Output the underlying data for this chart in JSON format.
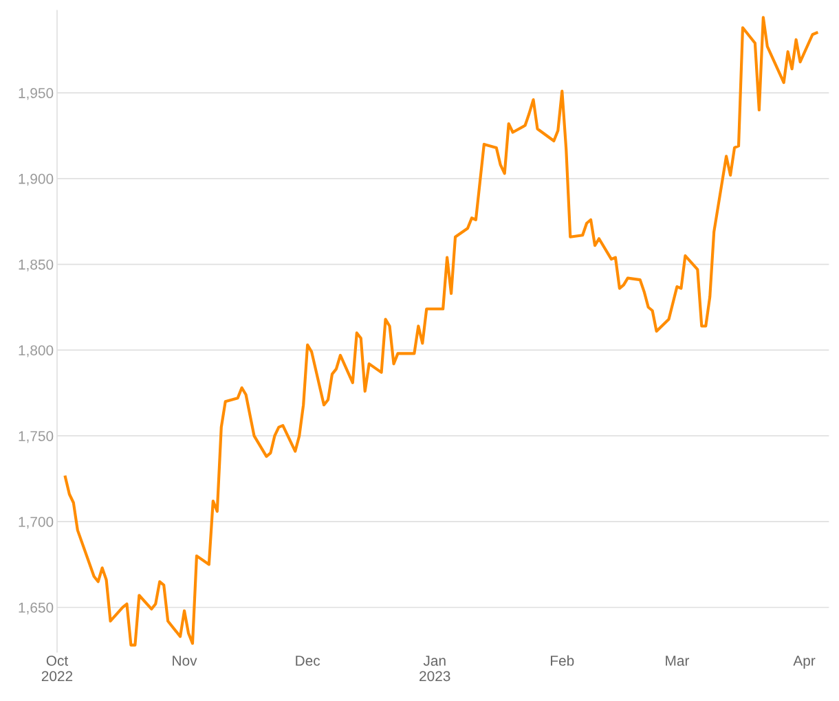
{
  "chart_data": {
    "type": "line",
    "grid": "y",
    "xlim": [
      "2022-10-01",
      "2023-04-07"
    ],
    "ylim": [
      1624,
      1998
    ],
    "xticks": [
      {
        "value": "2022-10-01",
        "label": "Oct\n2022"
      },
      {
        "value": "2022-11-01",
        "label": "Nov"
      },
      {
        "value": "2022-12-01",
        "label": "Dec"
      },
      {
        "value": "2023-01-01",
        "label": "Jan\n2023"
      },
      {
        "value": "2023-02-01",
        "label": "Feb"
      },
      {
        "value": "2023-03-01",
        "label": "Mar"
      },
      {
        "value": "2023-04-01",
        "label": "Apr"
      }
    ],
    "yticks": [
      {
        "value": 1650,
        "label": "1,650"
      },
      {
        "value": 1700,
        "label": "1,700"
      },
      {
        "value": 1750,
        "label": "1,750"
      },
      {
        "value": 1800,
        "label": "1,800"
      },
      {
        "value": 1850,
        "label": "1,850"
      },
      {
        "value": 1900,
        "label": "1,900"
      },
      {
        "value": 1950,
        "label": "1,950"
      }
    ],
    "marker": "none",
    "line_style": "solid",
    "series": [
      {
        "color": "#ff8c00",
        "x": [
          "2022-10-03",
          "2022-10-04",
          "2022-10-05",
          "2022-10-06",
          "2022-10-10",
          "2022-10-11",
          "2022-10-12",
          "2022-10-13",
          "2022-10-14",
          "2022-10-17",
          "2022-10-18",
          "2022-10-19",
          "2022-10-20",
          "2022-10-21",
          "2022-10-24",
          "2022-10-25",
          "2022-10-26",
          "2022-10-27",
          "2022-10-28",
          "2022-10-31",
          "2022-11-01",
          "2022-11-02",
          "2022-11-03",
          "2022-11-04",
          "2022-11-07",
          "2022-11-08",
          "2022-11-09",
          "2022-11-10",
          "2022-11-11",
          "2022-11-14",
          "2022-11-15",
          "2022-11-16",
          "2022-11-17",
          "2022-11-18",
          "2022-11-21",
          "2022-11-22",
          "2022-11-23",
          "2022-11-24",
          "2022-11-25",
          "2022-11-28",
          "2022-11-29",
          "2022-11-30",
          "2022-12-01",
          "2022-12-02",
          "2022-12-05",
          "2022-12-06",
          "2022-12-07",
          "2022-12-08",
          "2022-12-09",
          "2022-12-12",
          "2022-12-13",
          "2022-12-14",
          "2022-12-15",
          "2022-12-16",
          "2022-12-19",
          "2022-12-20",
          "2022-12-21",
          "2022-12-22",
          "2022-12-23",
          "2022-12-27",
          "2022-12-28",
          "2022-12-29",
          "2022-12-30",
          "2023-01-03",
          "2023-01-04",
          "2023-01-05",
          "2023-01-06",
          "2023-01-09",
          "2023-01-10",
          "2023-01-11",
          "2023-01-12",
          "2023-01-13",
          "2023-01-16",
          "2023-01-17",
          "2023-01-18",
          "2023-01-19",
          "2023-01-20",
          "2023-01-23",
          "2023-01-24",
          "2023-01-25",
          "2023-01-26",
          "2023-01-30",
          "2023-01-31",
          "2023-02-01",
          "2023-02-02",
          "2023-02-03",
          "2023-02-06",
          "2023-02-07",
          "2023-02-08",
          "2023-02-09",
          "2023-02-10",
          "2023-02-13",
          "2023-02-14",
          "2023-02-15",
          "2023-02-16",
          "2023-02-17",
          "2023-02-20",
          "2023-02-21",
          "2023-02-22",
          "2023-02-23",
          "2023-02-24",
          "2023-02-27",
          "2023-03-01",
          "2023-03-02",
          "2023-03-03",
          "2023-03-06",
          "2023-03-07",
          "2023-03-08",
          "2023-03-09",
          "2023-03-10",
          "2023-03-13",
          "2023-03-14",
          "2023-03-15",
          "2023-03-16",
          "2023-03-17",
          "2023-03-20",
          "2023-03-21",
          "2023-03-22",
          "2023-03-23",
          "2023-03-27",
          "2023-03-28",
          "2023-03-29",
          "2023-03-30",
          "2023-03-31",
          "2023-04-03",
          "2023-04-04"
        ],
        "values": [
          1726,
          1716,
          1711,
          1695,
          1668,
          1665,
          1673,
          1666,
          1642,
          1650,
          1652,
          1628,
          1628,
          1657,
          1649,
          1652,
          1665,
          1663,
          1642,
          1633,
          1648,
          1635,
          1629,
          1680,
          1675,
          1712,
          1706,
          1755,
          1770,
          1772,
          1778,
          1774,
          1762,
          1750,
          1738,
          1740,
          1750,
          1755,
          1756,
          1741,
          1750,
          1768,
          1803,
          1799,
          1768,
          1771,
          1786,
          1789,
          1797,
          1781,
          1810,
          1807,
          1776,
          1792,
          1787,
          1818,
          1814,
          1792,
          1798,
          1798,
          1814,
          1804,
          1824,
          1824,
          1854,
          1833,
          1866,
          1871,
          1877,
          1876,
          1898,
          1920,
          1918,
          1908,
          1903,
          1932,
          1927,
          1931,
          1938,
          1946,
          1929,
          1922,
          1928,
          1951,
          1917,
          1866,
          1867,
          1874,
          1876,
          1861,
          1865,
          1853,
          1854,
          1836,
          1838,
          1842,
          1841,
          1834,
          1825,
          1823,
          1811,
          1818,
          1837,
          1836,
          1855,
          1847,
          1814,
          1814,
          1831,
          1869,
          1913,
          1902,
          1918,
          1919,
          1988,
          1979,
          1940,
          1994,
          1977,
          1956,
          1974,
          1964,
          1981,
          1968,
          1984,
          1985
        ]
      }
    ]
  }
}
